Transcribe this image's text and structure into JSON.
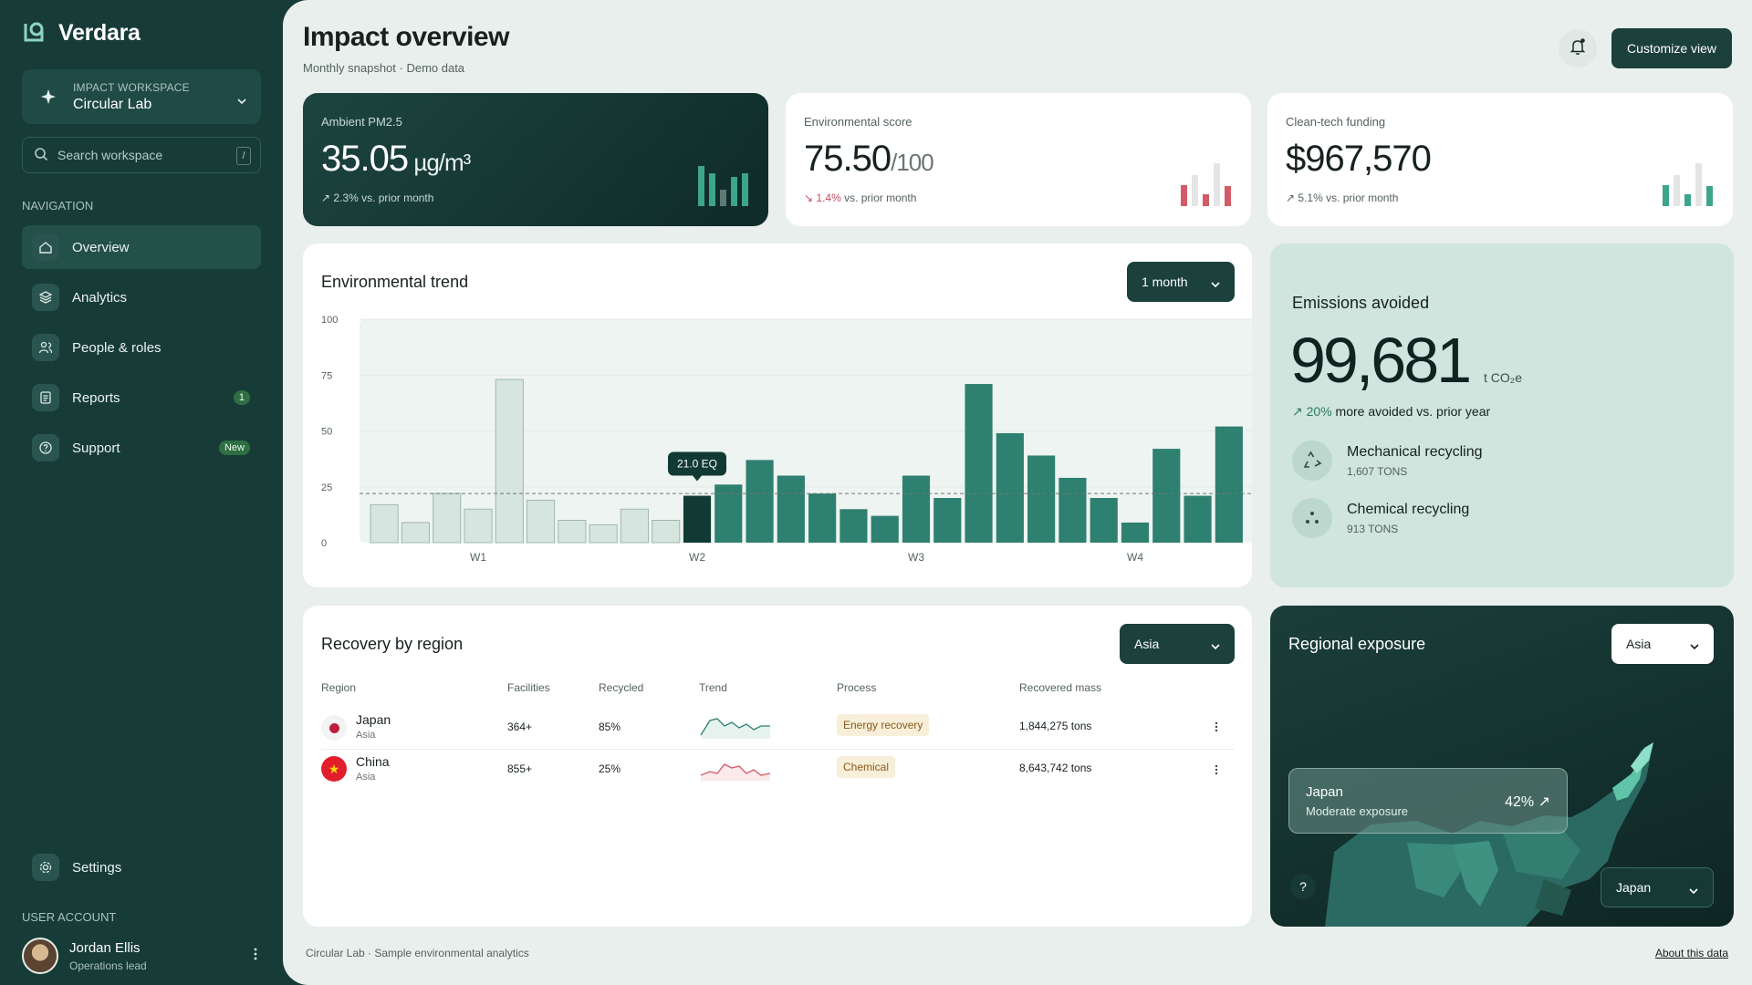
{
  "brand": {
    "name": "Verdara",
    "icon": "verdara-logo-icon"
  },
  "workspace": {
    "label": "IMPACT WORKSPACE",
    "name": "Circular Lab"
  },
  "search": {
    "placeholder": "Search workspace",
    "shortcut": "/"
  },
  "nav": {
    "label": "NAVIGATION",
    "items": [
      {
        "label": "Overview",
        "icon": "home-icon",
        "active": true
      },
      {
        "label": "Analytics",
        "icon": "layers-icon"
      },
      {
        "label": "People & roles",
        "icon": "users-icon"
      },
      {
        "label": "Reports",
        "icon": "document-icon",
        "badge": "1"
      },
      {
        "label": "Support",
        "icon": "help-circle-icon",
        "badge": "New"
      }
    ],
    "settings": "Settings"
  },
  "account": {
    "label": "USER ACCOUNT",
    "name": "Jordan Ellis",
    "role": "Operations lead"
  },
  "header": {
    "title": "Impact overview",
    "subtitle": "Monthly snapshot · Demo data",
    "customize": "Customize view"
  },
  "kpis": [
    {
      "label": "Ambient PM2.5",
      "value": "35.05",
      "unit": " µg/m³",
      "delta": "↗ 2.3%",
      "delta_text": " vs. prior month",
      "spark": [
        0.85,
        0.7,
        0.35,
        0.62,
        0.7
      ]
    },
    {
      "label": "Environmental score",
      "value": "75.50",
      "unit": "/100",
      "delta": "↘ 1.4%",
      "delta_text": " vs. prior month",
      "spark": [
        0.45,
        0.65,
        0.25,
        0.9,
        0.42
      ]
    },
    {
      "label": "Clean-tech funding",
      "value": "$967,570",
      "unit": "",
      "delta": "↗ 5.1%",
      "delta_text": " vs. prior month",
      "spark": [
        0.45,
        0.65,
        0.25,
        0.9,
        0.42
      ]
    }
  ],
  "trend": {
    "title": "Environmental trend",
    "range": "1 month",
    "tooltip": "21.0 EQ"
  },
  "chart_data": {
    "type": "bar",
    "ylim": [
      0,
      100
    ],
    "yticks": [
      "100",
      "75",
      "50",
      "25",
      "0"
    ],
    "xticks": [
      "W1",
      "W2",
      "W3",
      "W4"
    ],
    "reference_line": 22,
    "highlight_index": 10,
    "values": [
      17,
      9,
      22,
      15,
      73,
      19,
      10,
      8,
      15,
      10,
      21,
      26,
      37,
      30,
      22,
      15,
      12,
      30,
      20,
      71,
      49,
      39,
      29,
      20,
      9,
      42,
      21,
      52
    ]
  },
  "emissions": {
    "title": "Emissions avoided",
    "value": "99,681",
    "unit": "t CO₂e",
    "delta": "↗ 20%",
    "delta_text": " more avoided vs. prior year",
    "items": [
      {
        "name": "Mechanical recycling",
        "amount": "1,607 TONS",
        "icon": "recycle-icon"
      },
      {
        "name": "Chemical recycling",
        "amount": "913 TONS",
        "icon": "molecule-icon"
      }
    ]
  },
  "recovery": {
    "title": "Recovery by region",
    "filter": "Asia",
    "columns": [
      "Region",
      "Facilities",
      "Recycled",
      "Trend",
      "Process",
      "Recovered mass"
    ],
    "rows": [
      {
        "country": "Japan",
        "region": "Asia",
        "facilities": "364+",
        "recycled": "85%",
        "process": "Energy recovery",
        "mass": "1,844,275 tons",
        "flag": "japan-flag-icon"
      },
      {
        "country": "China",
        "region": "Asia",
        "facilities": "855+",
        "recycled": "25%",
        "process": "Chemical",
        "mass": "8,643,742 tons",
        "flag": "china-flag-icon"
      }
    ]
  },
  "exposure": {
    "title": "Regional exposure",
    "filter": "Asia",
    "card_country": "Japan",
    "card_level": "Moderate exposure",
    "card_value": "42% ↗",
    "help": "?",
    "country_select": "Japan"
  },
  "footer": {
    "left": "Circular Lab · Sample environmental analytics",
    "right": "About this data"
  },
  "colors": {
    "sidebar": "#173c38",
    "accent": "#2e8070",
    "negative": "#d45a67",
    "light_bar": "#d6e5df"
  }
}
